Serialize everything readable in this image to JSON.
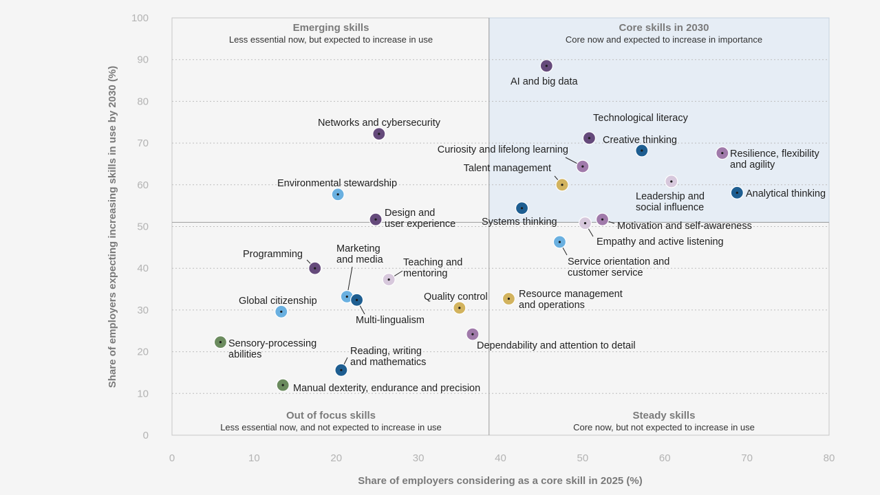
{
  "chart_data": {
    "type": "scatter",
    "xlabel": "Share of employers considering as a core skill in 2025 (%)",
    "ylabel": "Share of employers expecting increasing skills in use by 2030 (%)",
    "xlim": [
      0,
      80
    ],
    "ylim": [
      0,
      100
    ],
    "xticks": [
      0,
      10,
      20,
      30,
      40,
      50,
      60,
      70,
      80
    ],
    "yticks": [
      0,
      10,
      20,
      30,
      40,
      50,
      60,
      70,
      80,
      90,
      100
    ],
    "grid": true,
    "divider": {
      "x": 38.6,
      "y": 51
    },
    "quadrants": [
      {
        "id": "emerging",
        "title": "Emerging skills",
        "subtitle": "Less essential now, but expected to increase in use"
      },
      {
        "id": "core",
        "title": "Core skills in 2030",
        "subtitle": "Core now and expected to increase in importance"
      },
      {
        "id": "out-of-focus",
        "title": "Out of focus skills",
        "subtitle": "Less essential now, and not expected to increase in use"
      },
      {
        "id": "steady",
        "title": "Steady skills",
        "subtitle": "Core now, but not expected to increase in use"
      }
    ],
    "colors": {
      "dark_purple": "#654a7b",
      "purple": "#a07aaa",
      "light_purple": "#d7c8dc",
      "dark_blue": "#1e5e91",
      "light_blue": "#6ab0e0",
      "gold": "#d2b35e",
      "green": "#6b8b5e"
    },
    "points": [
      {
        "label": "AI and big data",
        "x": 45.6,
        "y": 88.5,
        "color": "dark_purple"
      },
      {
        "label": "Networks and cybersecurity",
        "x": 25.2,
        "y": 72.2,
        "color": "dark_purple"
      },
      {
        "label": "Technological literacy",
        "x": 50.8,
        "y": 71.2,
        "color": "dark_purple"
      },
      {
        "label": "Creative thinking",
        "x": 57.2,
        "y": 68.2,
        "color": "dark_blue"
      },
      {
        "label": "Resilience, flexibility and agility",
        "x": 67.0,
        "y": 67.6,
        "color": "purple"
      },
      {
        "label": "Curiosity and lifelong learning",
        "x": 50.0,
        "y": 64.4,
        "color": "purple"
      },
      {
        "label": "Talent management",
        "x": 47.5,
        "y": 60.0,
        "color": "gold"
      },
      {
        "label": "Leadership and social influence",
        "x": 60.8,
        "y": 60.8,
        "color": "light_purple"
      },
      {
        "label": "Analytical thinking",
        "x": 68.8,
        "y": 58.1,
        "color": "dark_blue"
      },
      {
        "label": "Environmental stewardship",
        "x": 20.2,
        "y": 57.7,
        "color": "light_blue"
      },
      {
        "label": "Systems thinking",
        "x": 42.6,
        "y": 54.4,
        "color": "dark_blue"
      },
      {
        "label": "Design and user experience",
        "x": 24.8,
        "y": 51.7,
        "color": "dark_purple"
      },
      {
        "label": "Motivation and self-awareness",
        "x": 52.4,
        "y": 51.7,
        "color": "purple"
      },
      {
        "label": "Empathy and active listening",
        "x": 50.3,
        "y": 50.8,
        "color": "light_purple"
      },
      {
        "label": "Service orientation and customer service",
        "x": 47.2,
        "y": 46.3,
        "color": "light_blue"
      },
      {
        "label": "Programming",
        "x": 17.4,
        "y": 40.0,
        "color": "dark_purple"
      },
      {
        "label": "Teaching and mentoring",
        "x": 26.4,
        "y": 37.3,
        "color": "light_purple"
      },
      {
        "label": "Marketing and media",
        "x": 21.3,
        "y": 33.2,
        "color": "light_blue"
      },
      {
        "label": "Multi-lingualism",
        "x": 22.5,
        "y": 32.4,
        "color": "dark_blue"
      },
      {
        "label": "Resource management and operations",
        "x": 41.0,
        "y": 32.7,
        "color": "gold"
      },
      {
        "label": "Quality control",
        "x": 35.0,
        "y": 30.5,
        "color": "gold"
      },
      {
        "label": "Global citizenship",
        "x": 13.3,
        "y": 29.6,
        "color": "light_blue"
      },
      {
        "label": "Dependability and attention to detail",
        "x": 36.6,
        "y": 24.2,
        "color": "purple"
      },
      {
        "label": "Sensory-processing abilities",
        "x": 5.9,
        "y": 22.3,
        "color": "green"
      },
      {
        "label": "Reading, writing and mathematics",
        "x": 20.6,
        "y": 15.6,
        "color": "dark_blue"
      },
      {
        "label": "Manual dexterity, endurance and precision",
        "x": 13.5,
        "y": 12.0,
        "color": "green"
      }
    ]
  }
}
